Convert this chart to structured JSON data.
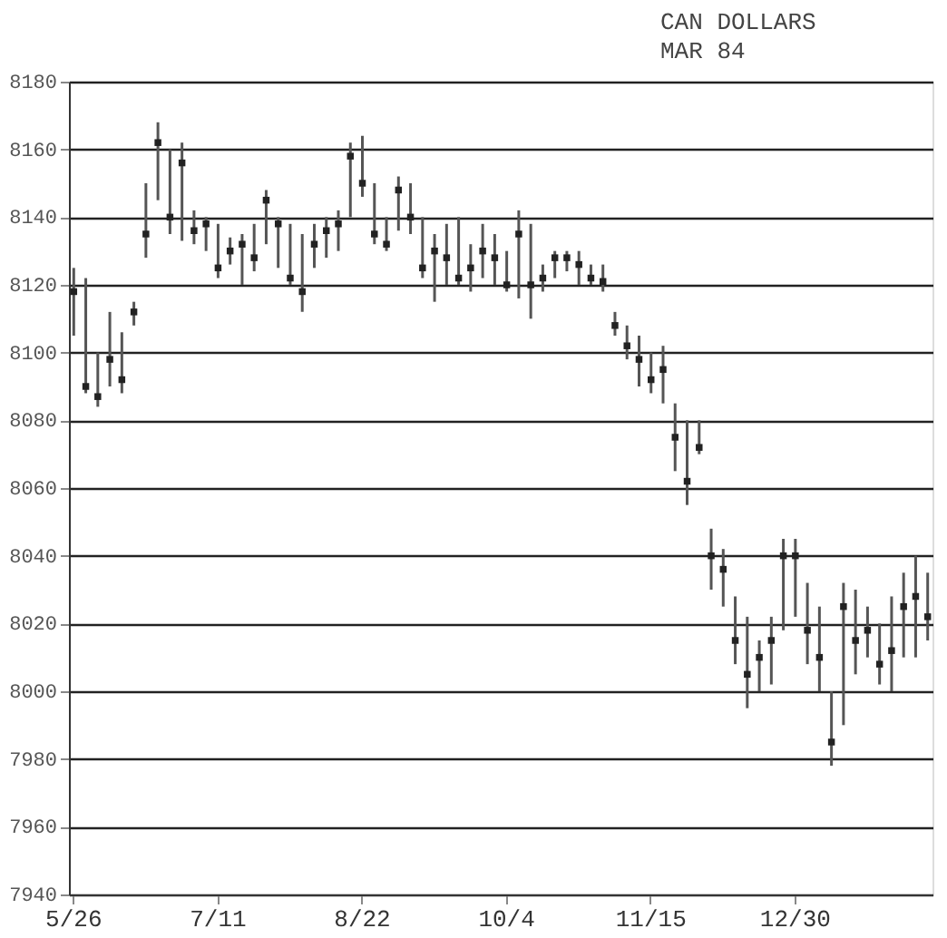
{
  "chart_data": {
    "type": "bar",
    "title": "CAN  DOLLARS",
    "subtitle": "MAR 84",
    "categories": [
      "5/26",
      null,
      null,
      null,
      null,
      null,
      null,
      null,
      null,
      null,
      null,
      null,
      "7/11",
      null,
      null,
      null,
      null,
      null,
      null,
      null,
      null,
      null,
      null,
      null,
      "8/22",
      null,
      null,
      null,
      null,
      null,
      null,
      null,
      null,
      null,
      null,
      null,
      "10/4",
      null,
      null,
      null,
      null,
      null,
      null,
      null,
      null,
      null,
      null,
      null,
      "11/15",
      null,
      null,
      null,
      null,
      null,
      null,
      null,
      null,
      null,
      null,
      null,
      "12/30",
      null,
      null,
      null,
      null,
      null,
      null,
      null,
      null,
      null,
      null,
      null
    ],
    "series": [
      {
        "color": "#555555",
        "base": [
          8105,
          8088,
          8084,
          8090,
          8088,
          8108,
          8128,
          8145,
          8135,
          8133,
          8132,
          8130,
          8122,
          8126,
          8120,
          8124,
          8132,
          8125,
          8120,
          8112,
          8125,
          8128,
          8130,
          8140,
          8146,
          8132,
          8130,
          8136,
          8135,
          8122,
          8115,
          8120,
          8120,
          8118,
          8122,
          8120,
          8118,
          8116,
          8110,
          8118,
          8122,
          8124,
          8120,
          8120,
          8118,
          8105,
          8098,
          8090,
          8088,
          8085,
          8065,
          8055,
          8070,
          8030,
          8025,
          8008,
          7995,
          8000,
          8002,
          8018,
          8022,
          8008,
          8000,
          7978,
          7990,
          8005,
          8010,
          8002,
          8000,
          8010,
          8010,
          8015
        ],
        "values": [
          20,
          34,
          16,
          22,
          18,
          7,
          22,
          23,
          25,
          29,
          10,
          10,
          16,
          8,
          15,
          14,
          16,
          15,
          18,
          23,
          13,
          12,
          12,
          22,
          18,
          18,
          10,
          16,
          15,
          18,
          20,
          18,
          20,
          14,
          16,
          15,
          12,
          26,
          28,
          8,
          8,
          6,
          10,
          6,
          8,
          7,
          10,
          15,
          12,
          17,
          20,
          25,
          10,
          18,
          17,
          20,
          27,
          15,
          20,
          27,
          23,
          24,
          25,
          22,
          42,
          25,
          15,
          18,
          28,
          25,
          30,
          20
        ]
      },
      {
        "type": "scatter",
        "color": "#222222",
        "marker": "square",
        "values": [
          8118,
          8090,
          8087,
          8098,
          8092,
          8112,
          8135,
          8162,
          8140,
          8156,
          8136,
          8138,
          8125,
          8130,
          8132,
          8128,
          8145,
          8138,
          8122,
          8118,
          8132,
          8136,
          8138,
          8158,
          8150,
          8135,
          8132,
          8148,
          8140,
          8125,
          8130,
          8128,
          8122,
          8125,
          8130,
          8128,
          8120,
          8135,
          8120,
          8122,
          8128,
          8128,
          8126,
          8122,
          8121,
          8108,
          8102,
          8098,
          8092,
          8095,
          8075,
          8062,
          8072,
          8040,
          8036,
          8015,
          8005,
          8010,
          8015,
          8040,
          8040,
          8018,
          8010,
          7985,
          8025,
          8015,
          8018,
          8008,
          8012,
          8025,
          8028,
          8022
        ]
      }
    ],
    "ylim": [
      7940,
      8180
    ],
    "yticks": [
      7940,
      7960,
      7980,
      8000,
      8020,
      8040,
      8060,
      8080,
      8100,
      8120,
      8140,
      8160,
      8180
    ],
    "grid": "y"
  }
}
